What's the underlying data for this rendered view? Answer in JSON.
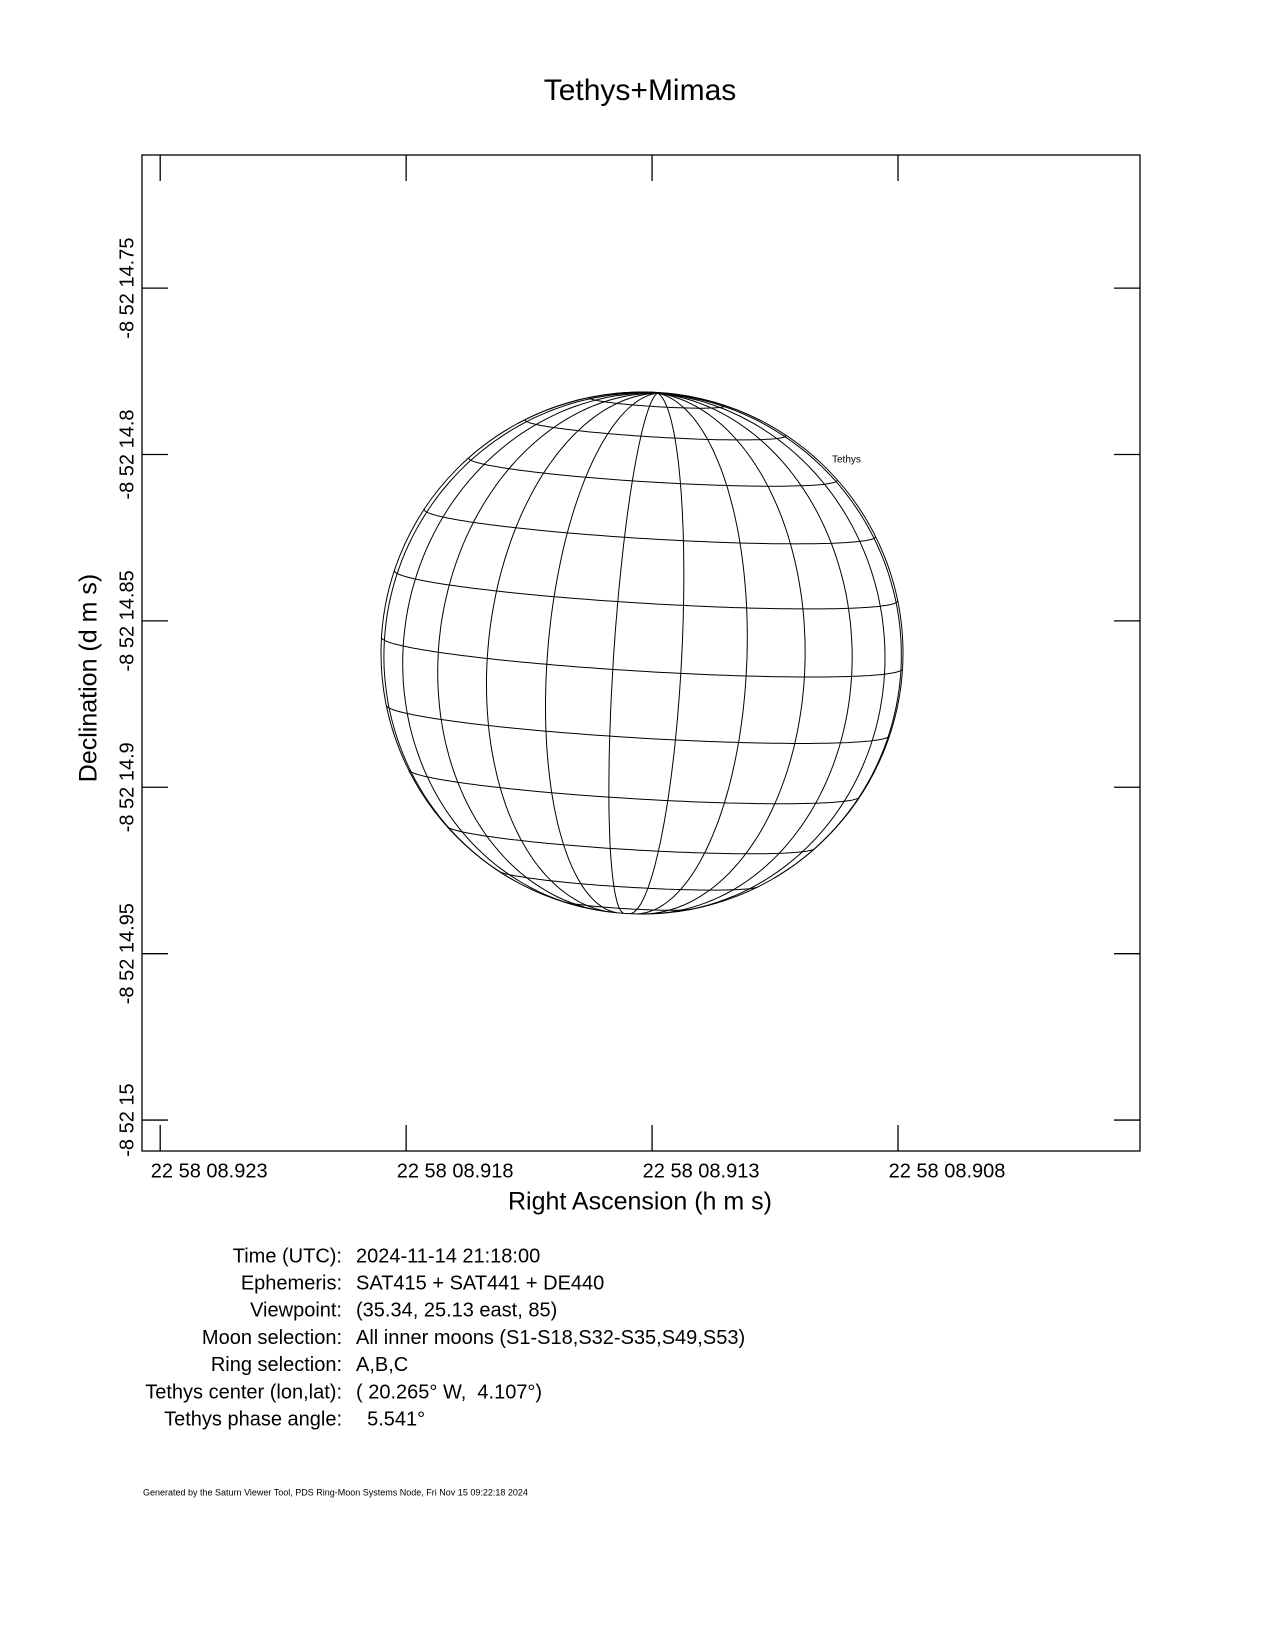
{
  "chart_data": {
    "type": "globe",
    "title": "Tethys+Mimas",
    "x_label": "Right Ascension (h m s)",
    "y_label": "Declination (d m s)",
    "xlim": [
      8.92337,
      8.90308
    ],
    "xticks": [
      {
        "value": 8.923,
        "label": "22 58 08.923"
      },
      {
        "value": 8.918,
        "label": "22 58 08.918"
      },
      {
        "value": 8.913,
        "label": "22 58 08.913"
      },
      {
        "value": 8.908,
        "label": "22 58 08.908"
      }
    ],
    "ylim": [
      15.0093,
      14.71
    ],
    "yticks": [
      {
        "value": 14.75,
        "label": "-8 52 14.75"
      },
      {
        "value": 14.8,
        "label": "-8 52 14.8"
      },
      {
        "value": 14.85,
        "label": "-8 52 14.85"
      },
      {
        "value": 14.9,
        "label": "-8 52 14.9"
      },
      {
        "value": 14.95,
        "label": "-8 52 14.95"
      },
      {
        "value": 15,
        "label": "-8 52 15"
      }
    ],
    "body_label": "Tethys"
  },
  "info": {
    "rows": [
      {
        "label": "Time (UTC):",
        "value": "2024-11-14 21:18:00"
      },
      {
        "label": "Ephemeris:",
        "value": "SAT415 + SAT441 + DE440"
      },
      {
        "label": "Viewpoint:",
        "value": "(35.34, 25.13 east, 85)"
      },
      {
        "label": "Moon selection:",
        "value": "All inner moons (S1-S18,S32-S35,S49,S53)"
      },
      {
        "label": "Ring selection:",
        "value": "A,B,C"
      },
      {
        "label": "Tethys center (lon,lat):",
        "value": "( 20.265° W,  4.107°)"
      },
      {
        "label": "Tethys phase angle:",
        "value": "  5.541°"
      }
    ]
  },
  "footer": "Generated by the Saturn Viewer Tool, PDS Ring-Moon Systems Node, Fri Nov 15 09:22:18 2024"
}
